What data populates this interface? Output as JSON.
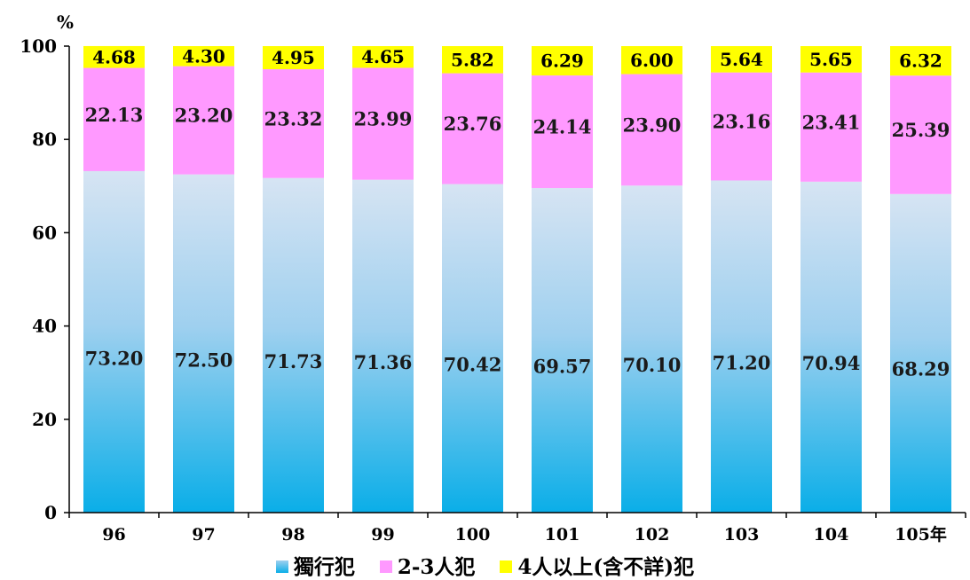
{
  "chart_data": {
    "type": "bar",
    "stacked": true,
    "y_unit": "%",
    "ylim": [
      0,
      100
    ],
    "y_ticks": [
      0,
      20,
      40,
      60,
      80,
      100
    ],
    "categories": [
      "96",
      "97",
      "98",
      "99",
      "100",
      "101",
      "102",
      "103",
      "104",
      "105年"
    ],
    "series": [
      {
        "name": "獨行犯",
        "color": "#4fb8ec",
        "values": [
          73.2,
          72.5,
          71.73,
          71.36,
          70.42,
          69.57,
          70.1,
          71.2,
          70.94,
          68.29
        ],
        "labels": [
          "73.20",
          "72.50",
          "71.73",
          "71.36",
          "70.42",
          "69.57",
          "70.10",
          "71.20",
          "70.94",
          "68.29"
        ]
      },
      {
        "name": "2-3人犯",
        "color": "#ff99ff",
        "values": [
          22.13,
          23.2,
          23.32,
          23.99,
          23.76,
          24.14,
          23.9,
          23.16,
          23.41,
          25.39
        ],
        "labels": [
          "22.13",
          "23.20",
          "23.32",
          "23.99",
          "23.76",
          "24.14",
          "23.90",
          "23.16",
          "23.41",
          "25.39"
        ]
      },
      {
        "name": "4人以上(含不詳)犯",
        "color": "#ffff00",
        "values": [
          4.68,
          4.3,
          4.95,
          4.65,
          5.82,
          6.29,
          6.0,
          5.64,
          5.65,
          6.32
        ],
        "labels": [
          "4.68",
          "4.30",
          "4.95",
          "4.65",
          "5.82",
          "6.29",
          "6.00",
          "5.64",
          "5.65",
          "6.32"
        ]
      }
    ],
    "legend_position": "bottom",
    "grid": false
  }
}
